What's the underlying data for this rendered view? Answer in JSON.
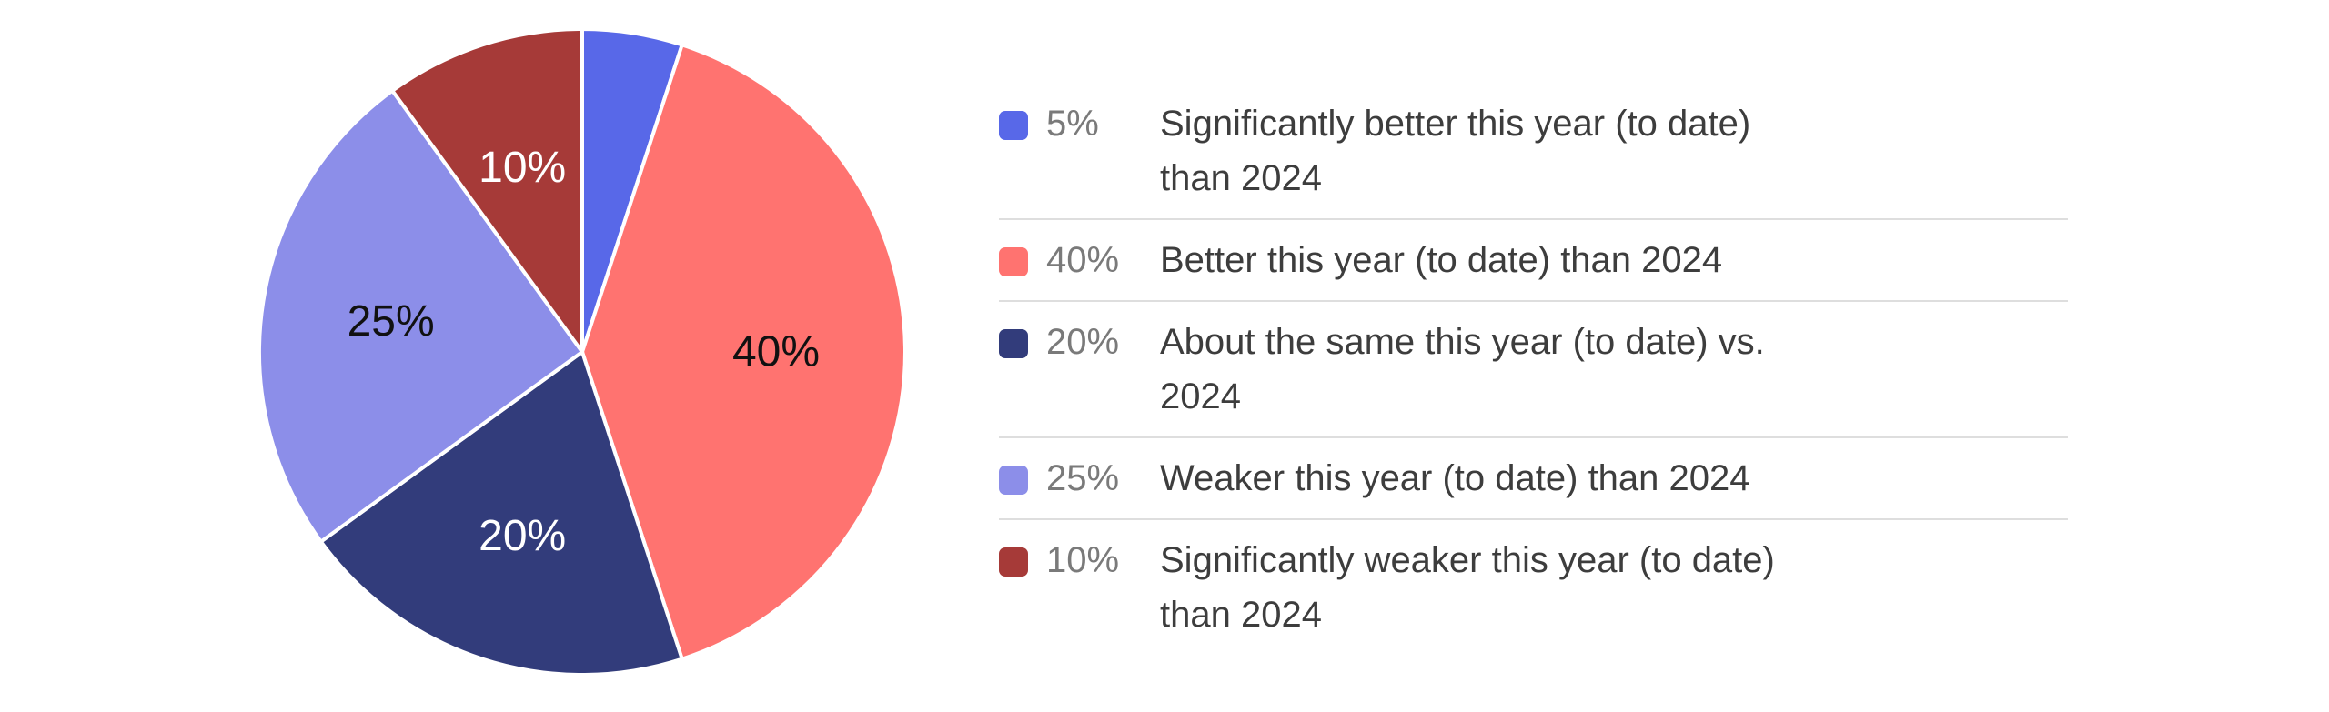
{
  "chart_data": {
    "type": "pie",
    "start_angle_deg": 0,
    "direction": "clockwise",
    "slices": [
      {
        "label": "Significantly better this year (to date) than 2024",
        "value": 5,
        "pct_text": "5%",
        "color": "#5868e8",
        "text_color": "#ffffff",
        "show_label": false
      },
      {
        "label": "Better this year (to date) than 2024",
        "value": 40,
        "pct_text": "40%",
        "color": "#ff7370",
        "text_color": "#111111",
        "show_label": true
      },
      {
        "label": "About the same this year (to date) vs. 2024",
        "value": 20,
        "pct_text": "20%",
        "color": "#323c7b",
        "text_color": "#ffffff",
        "show_label": true
      },
      {
        "label": "Weaker this year (to date) than 2024",
        "value": 25,
        "pct_text": "25%",
        "color": "#8c8ee9",
        "text_color": "#111111",
        "show_label": true
      },
      {
        "label": "Significantly weaker this year (to date) than 2024",
        "value": 10,
        "pct_text": "10%",
        "color": "#a63a38",
        "text_color": "#ffffff",
        "show_label": true
      }
    ],
    "legend_position": "right"
  }
}
